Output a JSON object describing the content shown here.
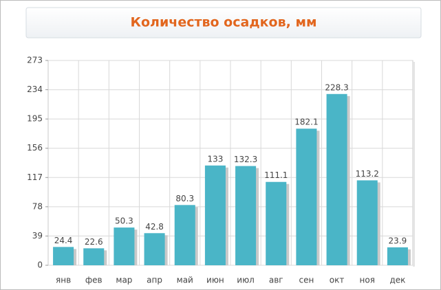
{
  "chart_data": {
    "type": "bar",
    "title": "Количество осадков, мм",
    "categories": [
      "янв",
      "фев",
      "мар",
      "апр",
      "май",
      "июн",
      "июл",
      "авг",
      "сен",
      "окт",
      "ноя",
      "дек"
    ],
    "values": [
      24.4,
      22.6,
      50.3,
      42.8,
      80.3,
      133,
      132.3,
      111.1,
      182.1,
      228.3,
      113.2,
      23.9
    ],
    "color": "#4ab5c7",
    "title_color": "#e2661e",
    "ylim": [
      0,
      273
    ],
    "yticks": [
      0,
      39,
      78,
      117,
      156,
      195,
      234,
      273
    ],
    "grid": true
  }
}
